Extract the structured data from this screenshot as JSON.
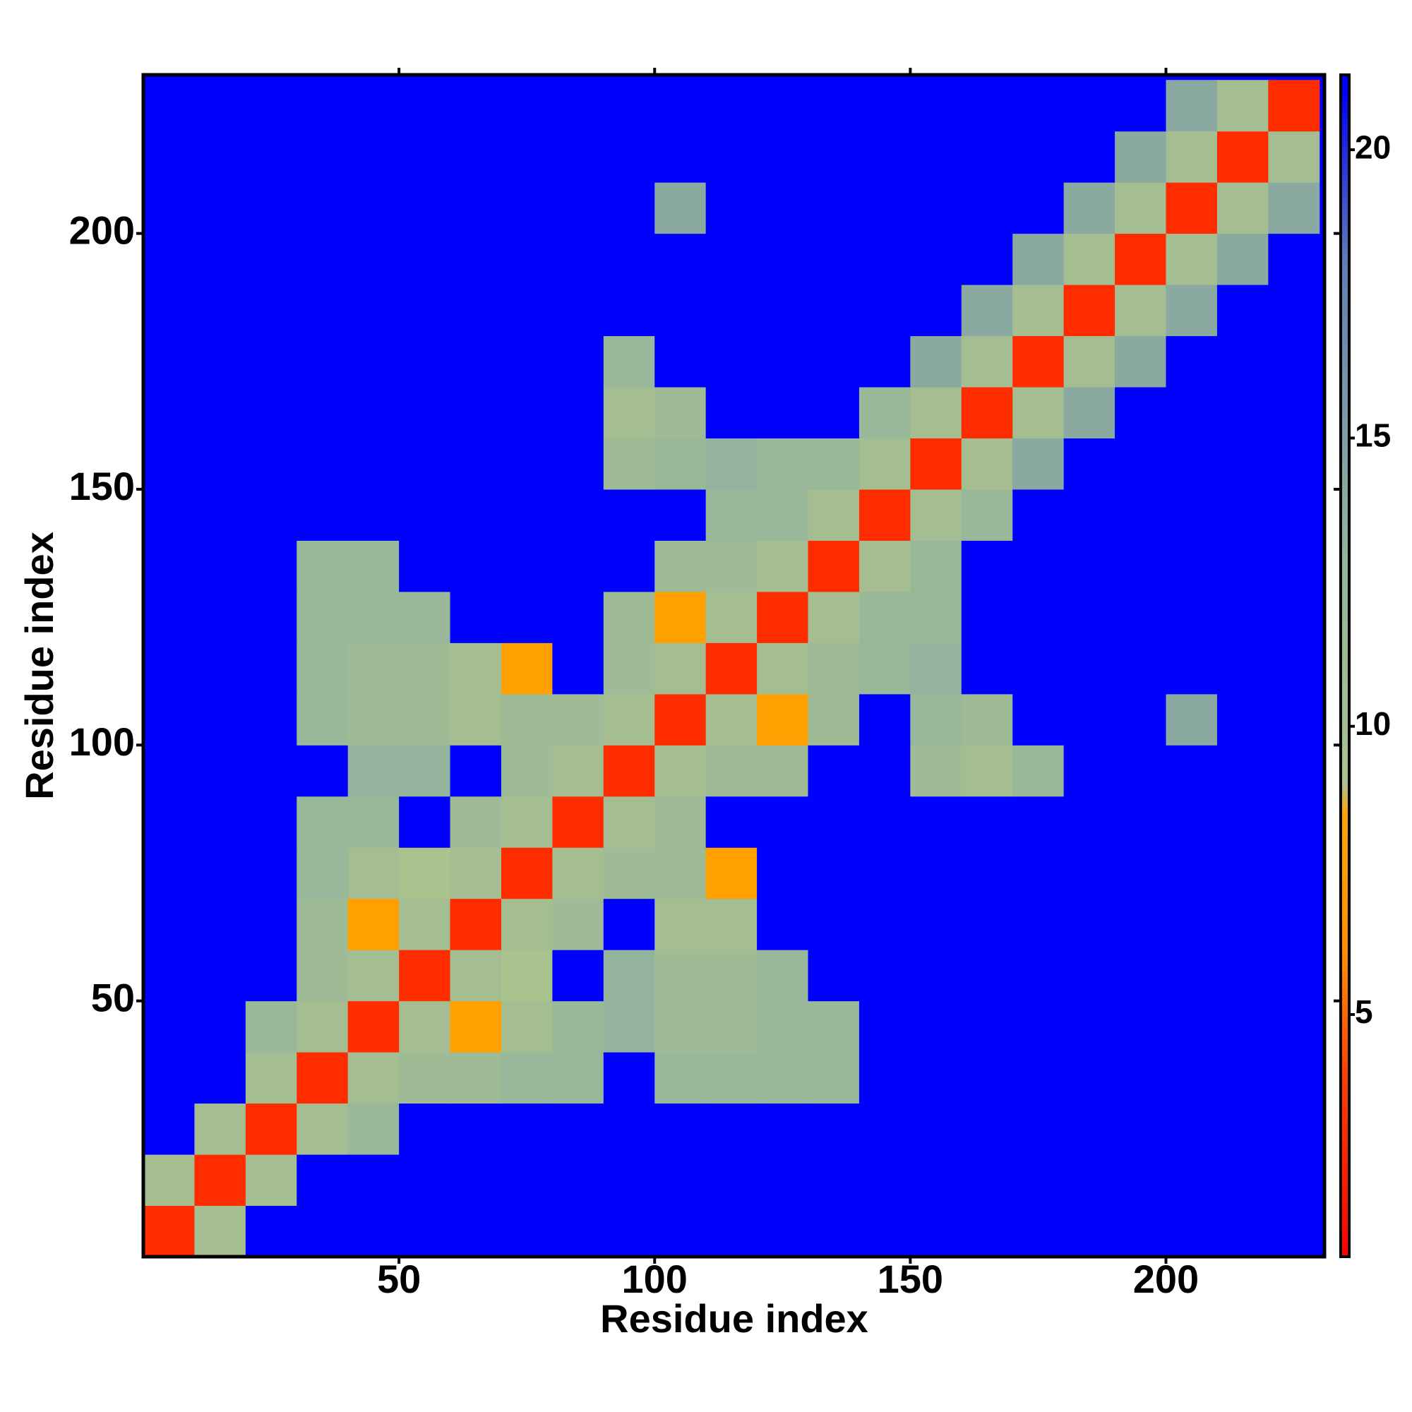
{
  "chart_data": {
    "type": "heatmap",
    "xlabel": "Residue index",
    "ylabel": "Residue index",
    "xbins": [
      0,
      10,
      20,
      30,
      40,
      50,
      60,
      70,
      80,
      90,
      100,
      110,
      120,
      130,
      140,
      150,
      160,
      170,
      180,
      190,
      200,
      210,
      220,
      230
    ],
    "ybins": [
      0,
      10,
      20,
      30,
      40,
      50,
      60,
      70,
      80,
      90,
      100,
      110,
      120,
      130,
      140,
      150,
      160,
      170,
      180,
      190,
      200,
      210,
      220,
      230
    ],
    "xlim": [
      0,
      231
    ],
    "ylim": [
      0,
      231
    ],
    "xticks": [
      50,
      100,
      150,
      200
    ],
    "yticks": [
      50,
      100,
      150,
      200
    ],
    "zlim": [
      0.8,
      21.3
    ],
    "colorbar_ticks": [
      5,
      10,
      15,
      20
    ],
    "colorscale": [
      [
        0.8,
        "#ff0000"
      ],
      [
        4,
        "#ff4000"
      ],
      [
        6,
        "#ff8c00"
      ],
      [
        8.5,
        "#ffa500"
      ],
      [
        9,
        "#a9c28e"
      ],
      [
        13,
        "#93b39c"
      ],
      [
        18,
        "#5f7fb5"
      ],
      [
        21,
        "#0000ff"
      ]
    ],
    "z": [
      [
        3,
        10,
        21,
        21,
        21,
        21,
        21,
        21,
        21,
        21,
        21,
        21,
        21,
        21,
        21,
        21,
        21,
        21,
        21,
        21,
        21,
        21,
        21
      ],
      [
        10,
        3,
        10,
        21,
        21,
        21,
        21,
        21,
        21,
        21,
        21,
        21,
        21,
        21,
        21,
        21,
        21,
        21,
        21,
        21,
        21,
        21,
        21
      ],
      [
        21,
        10,
        3,
        10,
        12,
        21,
        21,
        21,
        21,
        21,
        21,
        21,
        21,
        21,
        21,
        21,
        21,
        21,
        21,
        21,
        21,
        21,
        21
      ],
      [
        21,
        21,
        10,
        3,
        10,
        11,
        11,
        12,
        12,
        21,
        12,
        12,
        12,
        12,
        21,
        21,
        21,
        21,
        21,
        21,
        21,
        21,
        21
      ],
      [
        21,
        21,
        12,
        10,
        3,
        10,
        8,
        10,
        12,
        13,
        11,
        11,
        12,
        12,
        21,
        21,
        21,
        21,
        21,
        21,
        21,
        21,
        21
      ],
      [
        21,
        21,
        21,
        11,
        10,
        3,
        10,
        9,
        21,
        13,
        11,
        11,
        12,
        21,
        21,
        21,
        21,
        21,
        21,
        21,
        21,
        21,
        21
      ],
      [
        21,
        21,
        21,
        11,
        8,
        10,
        3,
        10,
        11,
        21,
        10,
        10,
        21,
        21,
        21,
        21,
        21,
        21,
        21,
        21,
        21,
        21,
        21
      ],
      [
        21,
        21,
        21,
        12,
        10,
        9,
        10,
        3,
        10,
        11,
        11,
        8,
        21,
        21,
        21,
        21,
        21,
        21,
        21,
        21,
        21,
        21,
        21
      ],
      [
        21,
        21,
        21,
        12,
        12,
        21,
        11,
        10,
        3,
        10,
        11,
        21,
        21,
        21,
        21,
        21,
        21,
        21,
        21,
        21,
        21,
        21,
        21
      ],
      [
        21,
        21,
        21,
        21,
        13,
        13,
        21,
        11,
        10,
        3,
        10,
        11,
        11,
        21,
        21,
        11,
        10,
        12,
        21,
        21,
        21,
        21,
        21
      ],
      [
        21,
        21,
        21,
        12,
        11,
        11,
        10,
        11,
        11,
        10,
        3,
        10,
        8,
        11,
        21,
        12,
        11,
        21,
        21,
        21,
        14,
        21,
        21
      ],
      [
        21,
        21,
        21,
        12,
        11,
        11,
        10,
        8,
        21,
        11,
        10,
        3,
        10,
        11,
        12,
        13,
        21,
        21,
        21,
        21,
        21,
        21,
        21
      ],
      [
        21,
        21,
        21,
        12,
        12,
        12,
        21,
        21,
        21,
        11,
        8,
        10,
        3,
        10,
        12,
        12,
        21,
        21,
        21,
        21,
        21,
        21,
        21
      ],
      [
        21,
        21,
        21,
        12,
        12,
        21,
        21,
        21,
        21,
        21,
        11,
        11,
        10,
        3,
        10,
        12,
        21,
        21,
        21,
        21,
        21,
        21,
        21
      ],
      [
        21,
        21,
        21,
        21,
        21,
        21,
        21,
        21,
        21,
        21,
        21,
        12,
        12,
        10,
        3,
        10,
        12,
        21,
        21,
        21,
        21,
        21,
        21
      ],
      [
        21,
        21,
        21,
        21,
        21,
        21,
        21,
        21,
        21,
        11,
        12,
        13,
        12,
        12,
        10,
        3,
        10,
        14,
        21,
        21,
        21,
        21,
        21
      ],
      [
        21,
        21,
        21,
        21,
        21,
        21,
        21,
        21,
        21,
        10,
        11,
        21,
        21,
        21,
        12,
        10,
        3,
        10,
        14,
        21,
        21,
        21,
        21
      ],
      [
        21,
        21,
        21,
        21,
        21,
        21,
        21,
        21,
        21,
        12,
        21,
        21,
        21,
        21,
        21,
        14,
        10,
        3,
        10,
        14,
        21,
        21,
        21
      ],
      [
        21,
        21,
        21,
        21,
        21,
        21,
        21,
        21,
        21,
        21,
        21,
        21,
        21,
        21,
        21,
        21,
        14,
        10,
        3,
        10,
        14,
        21,
        21
      ],
      [
        21,
        21,
        21,
        21,
        21,
        21,
        21,
        21,
        21,
        21,
        21,
        21,
        21,
        21,
        21,
        21,
        21,
        14,
        10,
        3,
        10,
        14,
        21
      ],
      [
        21,
        21,
        21,
        21,
        21,
        21,
        21,
        21,
        21,
        21,
        14,
        21,
        21,
        21,
        21,
        21,
        21,
        21,
        14,
        10,
        3,
        10,
        14
      ],
      [
        21,
        21,
        21,
        21,
        21,
        21,
        21,
        21,
        21,
        21,
        21,
        21,
        21,
        21,
        21,
        21,
        21,
        21,
        21,
        14,
        10,
        3,
        10
      ],
      [
        21,
        21,
        21,
        21,
        21,
        21,
        21,
        21,
        21,
        21,
        21,
        21,
        21,
        21,
        21,
        21,
        21,
        21,
        21,
        21,
        14,
        10,
        3
      ]
    ]
  }
}
